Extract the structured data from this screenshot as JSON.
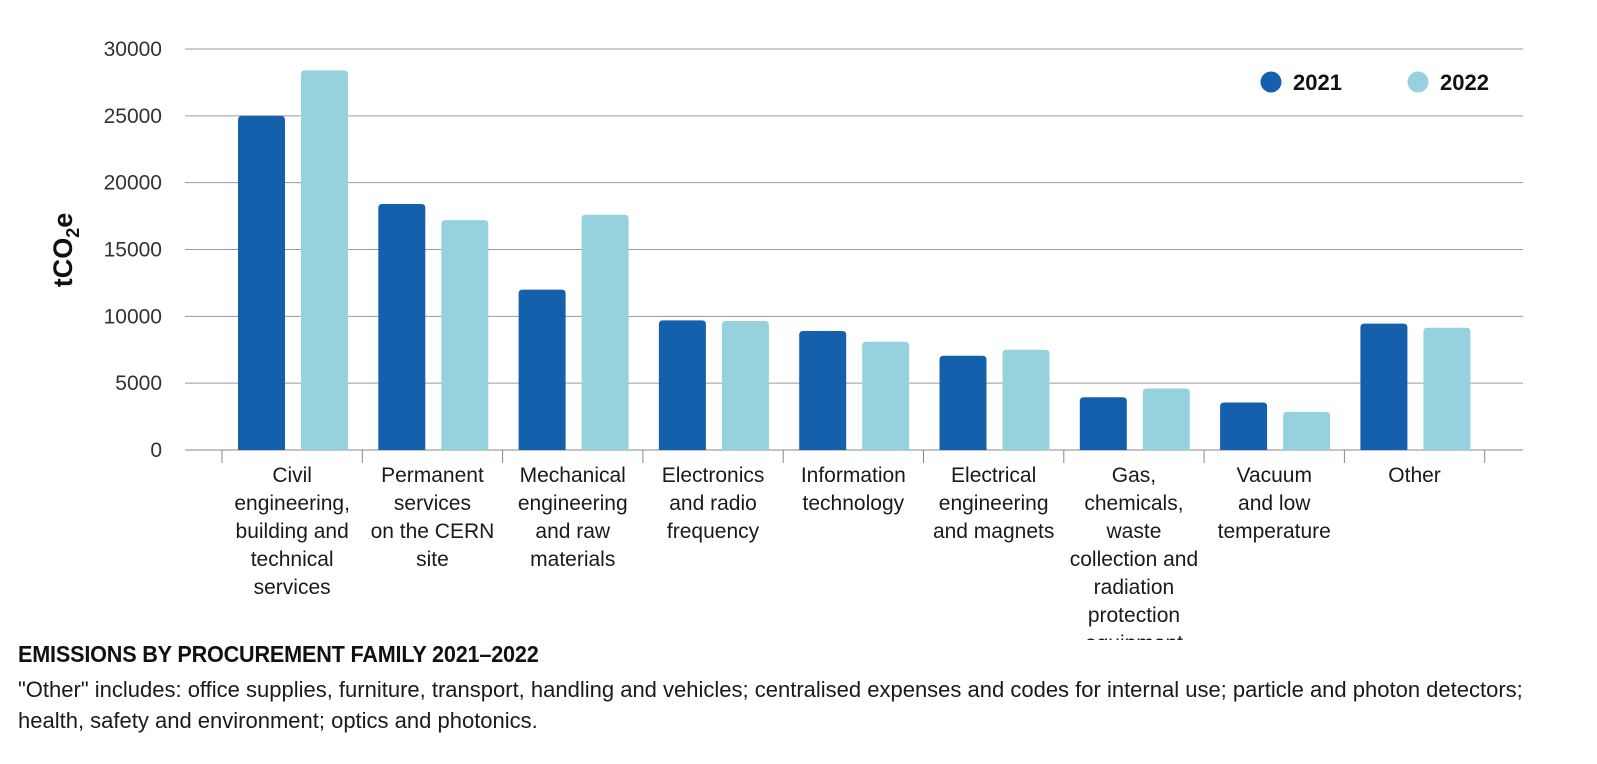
{
  "chart_data": {
    "type": "bar",
    "ylabel": "tCO2e",
    "ylabel_main": "tCO",
    "ylabel_sub": "2",
    "ylabel_tail": "e",
    "ylim": [
      0,
      30000
    ],
    "yticks": [
      "0",
      "5000",
      "10000",
      "15000",
      "20000",
      "25000",
      "30000"
    ],
    "grid": true,
    "legend_position": "top-right",
    "categories": [
      [
        "Civil",
        "engineering,",
        "building and",
        "technical",
        "services"
      ],
      [
        "Permanent",
        "services",
        "on the CERN",
        "site"
      ],
      [
        "Mechanical",
        "engineering",
        "and raw",
        "materials"
      ],
      [
        "Electronics",
        "and radio",
        "frequency"
      ],
      [
        "Information",
        "technology"
      ],
      [
        "Electrical",
        "engineering",
        "and magnets"
      ],
      [
        "Gas,",
        "chemicals,",
        "waste",
        "collection and",
        "radiation",
        "protection",
        "equipment"
      ],
      [
        "Vacuum",
        "and low",
        "temperature"
      ],
      [
        "Other"
      ]
    ],
    "series": [
      {
        "name": "2021",
        "color": "#1560ad",
        "values": [
          25000,
          18400,
          12000,
          9700,
          8900,
          7050,
          3950,
          3550,
          9450
        ]
      },
      {
        "name": "2022",
        "color": "#96d2de",
        "values": [
          28400,
          17200,
          17600,
          9650,
          8100,
          7500,
          4600,
          2850,
          9150
        ]
      }
    ]
  },
  "caption": {
    "title": "EMISSIONS BY PROCUREMENT FAMILY 2021–2022",
    "note": "\"Other\" includes: office supplies, furniture, transport, handling and vehicles; centralised expenses and codes for internal use; particle and photon detectors; health, safety and environment; optics and photonics."
  }
}
